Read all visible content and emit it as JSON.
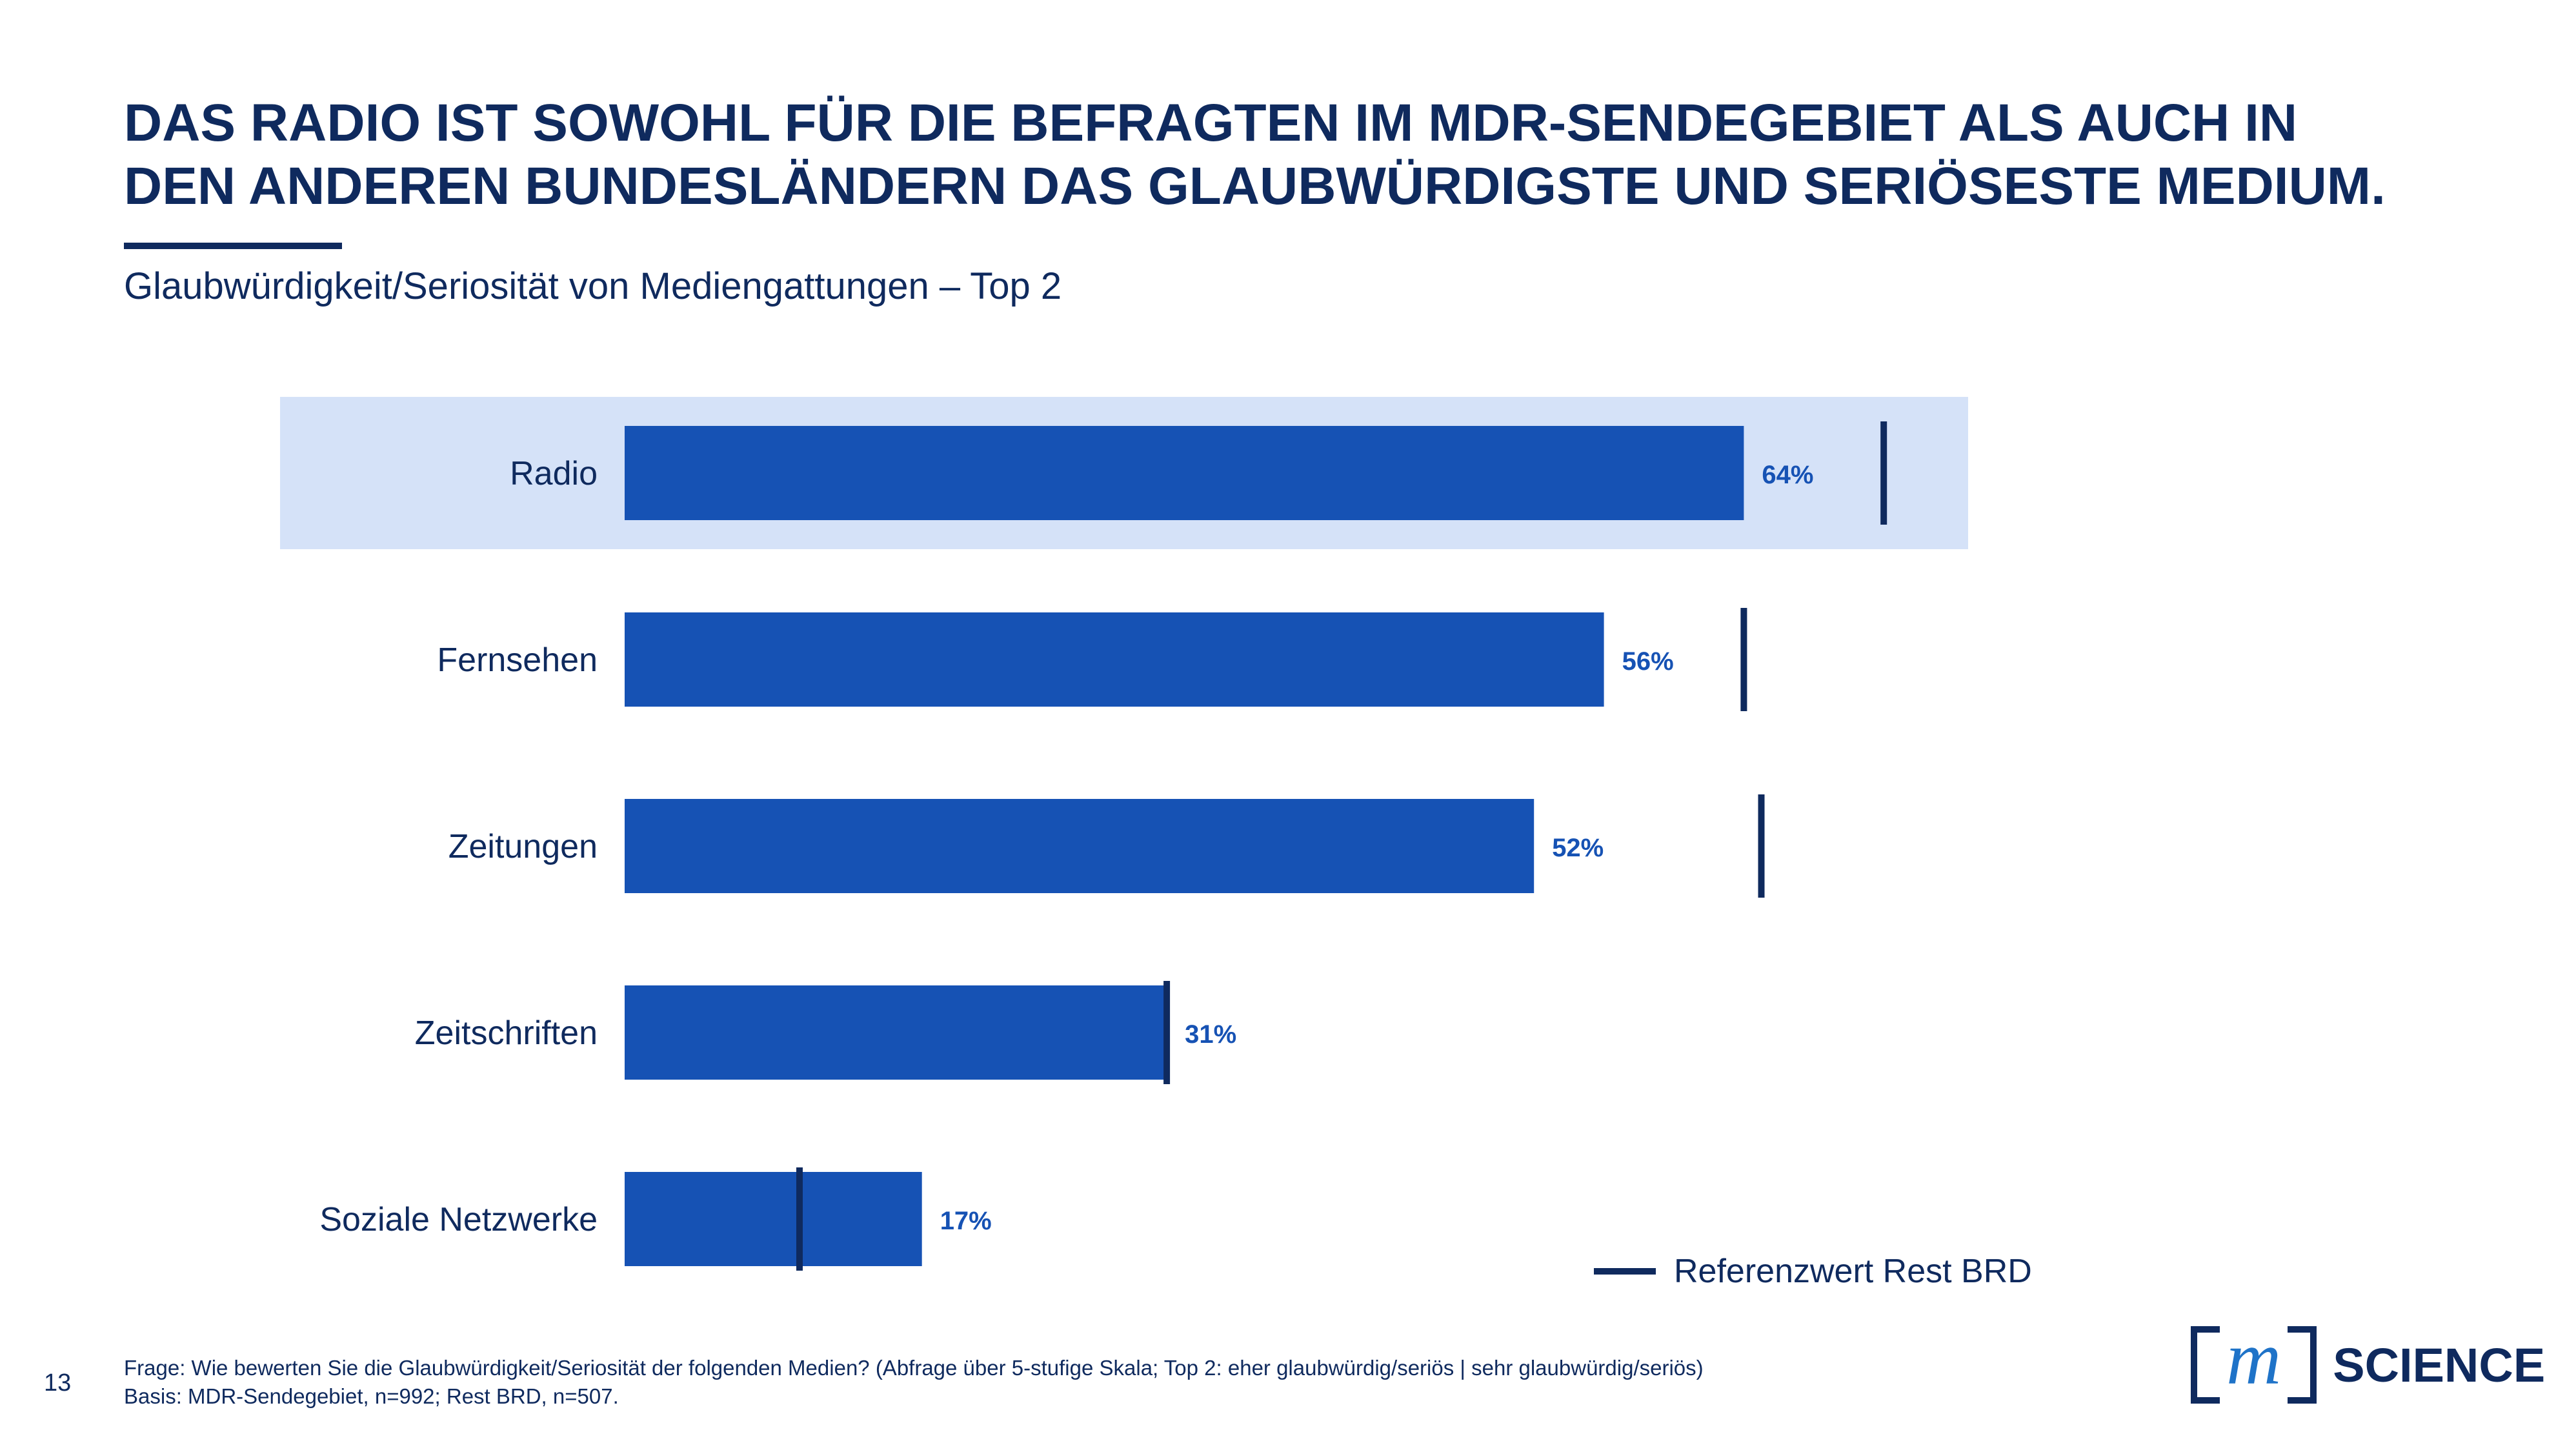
{
  "header": {
    "title_line1": "DAS RADIO IST SOWOHL FÜR DIE BEFRAGTEN IM MDR-SENDEGEBIET ALS AUCH IN",
    "title_line2": "DEN ANDEREN BUNDESLÄNDERN DAS GLAUBWÜRDIGSTE UND SERIÖSESTE MEDIUM.",
    "subtitle": "Glaubwürdigkeit/Seriosität von Mediengattungen – Top 2"
  },
  "chart_data": {
    "type": "bar",
    "orientation": "horizontal",
    "categories": [
      "Radio",
      "Fernsehen",
      "Zeitungen",
      "Zeitschriften",
      "Soziale Netzwerke"
    ],
    "series": [
      {
        "values": [
          64,
          56,
          52,
          31,
          17
        ],
        "labels": [
          "64%",
          "56%",
          "52%",
          "31%",
          "17%"
        ]
      },
      {
        "name": "Referenzwert Rest BRD",
        "values": [
          72,
          64,
          65,
          31,
          10
        ],
        "marker": "reference-line"
      }
    ],
    "highlighted_category": "Radio",
    "xlim": [
      0,
      100
    ],
    "grid": false,
    "legend": "bottom-right"
  },
  "legend": {
    "label": "Referenzwert Rest BRD"
  },
  "footer": {
    "page_number": "13",
    "question": "Frage: Wie bewerten Sie die Glaubwürdigkeit/Seriosität der folgenden Medien? (Abfrage über 5-stufige Skala; Top 2: eher glaubwürdig/seriös | sehr glaubwürdig/seriös)",
    "basis": "Basis: MDR-Sendegebiet, n=992; Rest BRD, n=507."
  },
  "logo": {
    "text": "SCIENCE",
    "mark": "m"
  },
  "colors": {
    "bar": "#1652b4",
    "highlight_band": "#d5e2f8",
    "reference": "#0f2a5e",
    "value_label": "#1652b4",
    "text": "#0f2a5e",
    "logo_accent": "#1f73c8"
  }
}
